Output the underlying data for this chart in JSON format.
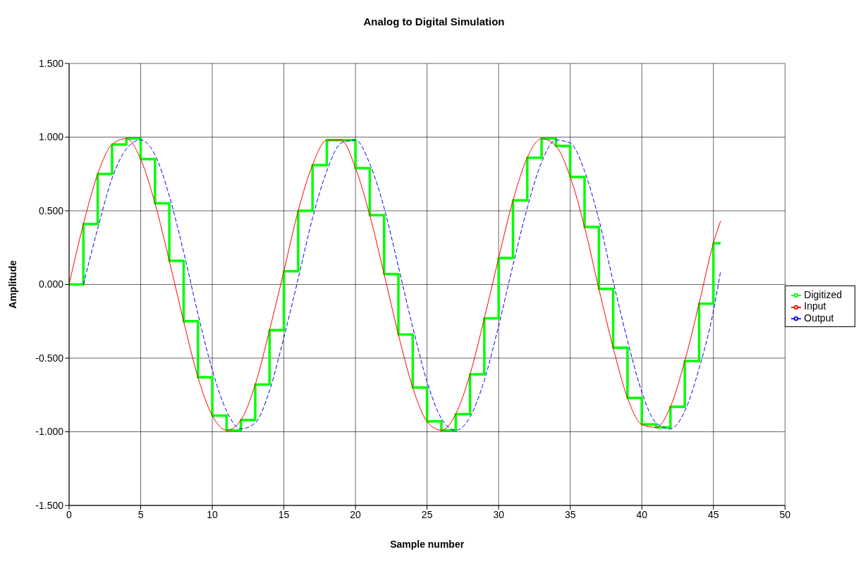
{
  "chart_data": {
    "type": "line",
    "title": "Analog to Digital Simulation",
    "xlabel": "Sample number",
    "ylabel": "Amplitude",
    "xlim": [
      0,
      50
    ],
    "xticks": [
      0,
      5,
      10,
      15,
      20,
      25,
      30,
      35,
      40,
      45,
      50
    ],
    "ylim": [
      -1.5,
      1.5
    ],
    "yticks": [
      {
        "value": -1.5,
        "label": "-1.500"
      },
      {
        "value": -1,
        "label": "-1.000"
      },
      {
        "value": -0.5,
        "label": "-0.500"
      },
      {
        "value": 0,
        "label": "0.000"
      },
      {
        "value": 0.5,
        "label": "0.500"
      },
      {
        "value": 1,
        "label": "1.000"
      },
      {
        "value": 1.5,
        "label": "1.500"
      }
    ],
    "grid": true,
    "legend": "right",
    "marker": "none",
    "series": [
      {
        "name": "Input",
        "color": "#ff0000",
        "line_style": "solid",
        "x": [
          0,
          1,
          2,
          3,
          4,
          5,
          6,
          7,
          8,
          9,
          10,
          11,
          12,
          13,
          14,
          15,
          16,
          17,
          18,
          19,
          20,
          21,
          22,
          23,
          24,
          25,
          26,
          27,
          28,
          29,
          30,
          31,
          32,
          33,
          34,
          35,
          36,
          37,
          38,
          39,
          40,
          41,
          42,
          43,
          44,
          45,
          45.5
        ],
        "values": [
          0,
          0.41,
          0.75,
          0.95,
          0.99,
          0.85,
          0.55,
          0.16,
          -0.25,
          -0.63,
          -0.89,
          -0.99,
          -0.92,
          -0.68,
          -0.31,
          0.09,
          0.5,
          0.81,
          0.98,
          0.98,
          0.79,
          0.47,
          0.07,
          -0.34,
          -0.7,
          -0.93,
          -0.99,
          -0.88,
          -0.61,
          -0.23,
          0.18,
          0.57,
          0.86,
          0.99,
          0.94,
          0.73,
          0.39,
          -0.03,
          -0.43,
          -0.77,
          -0.95,
          -0.97,
          -0.83,
          -0.52,
          -0.13,
          0.28,
          0.43
        ]
      },
      {
        "name": "Digitized",
        "type": "step",
        "color": "#00ff00",
        "line_style": "solid",
        "x": [
          0,
          1,
          2,
          3,
          4,
          5,
          6,
          7,
          8,
          9,
          10,
          11,
          12,
          13,
          14,
          15,
          16,
          17,
          18,
          19,
          20,
          21,
          22,
          23,
          24,
          25,
          26,
          27,
          28,
          29,
          30,
          31,
          32,
          33,
          34,
          35,
          36,
          37,
          38,
          39,
          40,
          41,
          42,
          43,
          44,
          45,
          45.5
        ],
        "values": [
          0,
          0.41,
          0.75,
          0.95,
          0.99,
          0.85,
          0.55,
          0.16,
          -0.25,
          -0.63,
          -0.89,
          -0.99,
          -0.92,
          -0.68,
          -0.31,
          0.09,
          0.5,
          0.81,
          0.98,
          0.98,
          0.79,
          0.47,
          0.07,
          -0.34,
          -0.7,
          -0.93,
          -0.99,
          -0.88,
          -0.61,
          -0.23,
          0.18,
          0.57,
          0.86,
          0.99,
          0.94,
          0.73,
          0.39,
          -0.03,
          -0.43,
          -0.77,
          -0.95,
          -0.97,
          -0.83,
          -0.52,
          -0.13,
          0.28,
          0.28
        ]
      },
      {
        "name": "Output",
        "color": "#0000ff",
        "line_style": "dashed",
        "x": [
          1,
          2,
          3,
          4,
          5,
          6,
          7,
          8,
          9,
          10,
          11,
          12,
          13,
          14,
          15,
          16,
          17,
          18,
          19,
          20,
          21,
          22,
          23,
          24,
          25,
          26,
          27,
          28,
          29,
          30,
          31,
          32,
          33,
          34,
          35,
          36,
          37,
          38,
          39,
          40,
          41,
          42,
          43,
          44,
          45,
          45.5
        ],
        "values": [
          0,
          0.38,
          0.72,
          0.92,
          0.98,
          0.88,
          0.6,
          0.22,
          -0.2,
          -0.58,
          -0.86,
          -0.98,
          -0.94,
          -0.72,
          -0.36,
          0.04,
          0.45,
          0.77,
          0.96,
          0.98,
          0.82,
          0.52,
          0.12,
          -0.29,
          -0.66,
          -0.91,
          -0.99,
          -0.9,
          -0.65,
          -0.28,
          0.13,
          0.52,
          0.83,
          0.98,
          0.96,
          0.77,
          0.44,
          0.02,
          -0.38,
          -0.73,
          -0.94,
          -0.98,
          -0.86,
          -0.57,
          -0.18,
          0.09
        ]
      }
    ]
  }
}
